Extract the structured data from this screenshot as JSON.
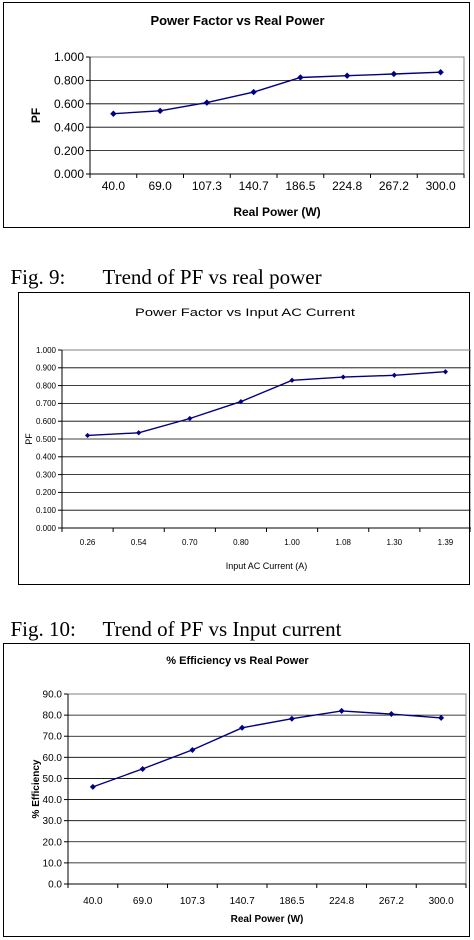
{
  "charts": [
    {
      "caption_num": "Fig. 9:",
      "caption_text": "Trend of PF vs real power"
    },
    {
      "caption_num": "Fig. 10:",
      "caption_text": "Trend of PF vs Input current"
    },
    {
      "caption_num": "",
      "caption_text": ""
    }
  ],
  "chart_data": [
    {
      "type": "line",
      "title": "Power Factor vs Real Power",
      "xlabel": "Real Power (W)",
      "ylabel": "PF",
      "categories": [
        "40.0",
        "69.0",
        "107.3",
        "140.7",
        "186.5",
        "224.8",
        "267.2",
        "300.0"
      ],
      "series": [
        {
          "values": [
            0.515,
            0.54,
            0.61,
            0.7,
            0.825,
            0.84,
            0.855,
            0.87
          ]
        }
      ],
      "ylim": [
        0,
        1.0
      ],
      "yticks": [
        "0.000",
        "0.200",
        "0.400",
        "0.600",
        "0.800",
        "1.000"
      ],
      "grid": true,
      "line_color": "#000080"
    },
    {
      "type": "line",
      "title": "Power Factor vs Input AC Current",
      "xlabel": "Input AC Current (A)",
      "ylabel": "PF",
      "categories": [
        "0.26",
        "0.54",
        "0.70",
        "0.80",
        "1.00",
        "1.08",
        "1.30",
        "1.39"
      ],
      "series": [
        {
          "values": [
            0.52,
            0.535,
            0.615,
            0.71,
            0.83,
            0.848,
            0.858,
            0.878
          ]
        }
      ],
      "ylim": [
        0,
        1.0
      ],
      "yticks": [
        "0.000",
        "0.100",
        "0.200",
        "0.300",
        "0.400",
        "0.500",
        "0.600",
        "0.700",
        "0.800",
        "0.900",
        "1.000"
      ],
      "grid": true,
      "line_color": "#000080"
    },
    {
      "type": "line",
      "title": "% Efficiency vs Real Power",
      "xlabel": "Real Power (W)",
      "ylabel": "% Efficiency",
      "categories": [
        "40.0",
        "69.0",
        "107.3",
        "140.7",
        "186.5",
        "224.8",
        "267.2",
        "300.0"
      ],
      "series": [
        {
          "values": [
            46.0,
            54.5,
            63.5,
            74.0,
            78.3,
            82.0,
            80.5,
            78.7
          ]
        }
      ],
      "ylim": [
        0,
        90
      ],
      "yticks": [
        "0.0",
        "10.0",
        "20.0",
        "30.0",
        "40.0",
        "50.0",
        "60.0",
        "70.0",
        "80.0",
        "90.0"
      ],
      "grid": true,
      "line_color": "#000080"
    }
  ]
}
